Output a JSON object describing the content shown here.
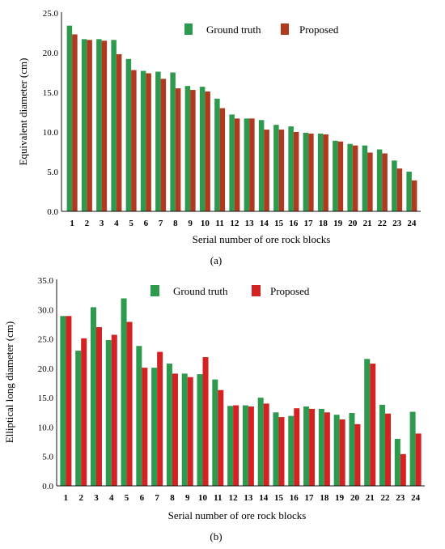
{
  "colors": {
    "ground_truth": "#2e9a4e",
    "proposed_a": "#b03a1f",
    "proposed_b": "#d42222",
    "axis": "#111111"
  },
  "chart_data": [
    {
      "type": "bar",
      "panel_label": "(a)",
      "xlabel": "Serial number of ore rock blocks",
      "ylabel": "Equivalent diameter (cm)",
      "ylim": [
        0,
        25
      ],
      "yticks": [
        "0.0",
        "5.0",
        "10.0",
        "15.0",
        "20.0",
        "25.0"
      ],
      "categories": [
        "1",
        "2",
        "3",
        "4",
        "5",
        "6",
        "7",
        "8",
        "9",
        "10",
        "11",
        "12",
        "13",
        "14",
        "15",
        "16",
        "17",
        "18",
        "19",
        "20",
        "21",
        "22",
        "23",
        "24"
      ],
      "legend_position": "top-right",
      "series": [
        {
          "name": "Ground truth",
          "values": [
            23.4,
            21.7,
            21.7,
            21.6,
            19.2,
            17.7,
            17.6,
            17.5,
            15.8,
            15.7,
            14.2,
            12.2,
            11.7,
            11.5,
            10.9,
            10.7,
            9.9,
            9.8,
            8.9,
            8.5,
            8.3,
            7.8,
            6.4,
            5.0
          ]
        },
        {
          "name": "Proposed",
          "values": [
            22.3,
            21.6,
            21.5,
            19.8,
            17.8,
            17.4,
            16.7,
            15.5,
            15.3,
            15.1,
            13.0,
            11.7,
            11.7,
            10.3,
            10.3,
            10.0,
            9.8,
            9.7,
            8.8,
            8.3,
            7.4,
            7.3,
            5.4,
            3.9
          ]
        }
      ]
    },
    {
      "type": "bar",
      "panel_label": "(b)",
      "xlabel": "Serial number of ore rock blocks",
      "ylabel": "Elliptical long diameter (cm)",
      "ylim": [
        0,
        35
      ],
      "yticks": [
        "0.0",
        "5.0",
        "10.0",
        "15.0",
        "20.0",
        "25.0",
        "30.0",
        "35.0"
      ],
      "categories": [
        "1",
        "2",
        "3",
        "4",
        "5",
        "6",
        "7",
        "8",
        "9",
        "10",
        "11",
        "12",
        "13",
        "14",
        "15",
        "16",
        "17",
        "18",
        "19",
        "20",
        "21",
        "22",
        "23",
        "24"
      ],
      "legend_position": "top-right",
      "series": [
        {
          "name": "Ground truth",
          "values": [
            28.9,
            23.0,
            30.4,
            24.8,
            31.9,
            23.8,
            20.1,
            20.8,
            19.1,
            19.0,
            18.1,
            13.6,
            13.7,
            15.0,
            12.5,
            11.9,
            13.5,
            13.1,
            12.1,
            12.4,
            21.6,
            13.8,
            8.0,
            12.6
          ]
        },
        {
          "name": "Proposed",
          "values": [
            28.9,
            25.1,
            27.0,
            25.7,
            27.9,
            20.1,
            22.8,
            19.1,
            18.5,
            21.9,
            16.3,
            13.7,
            13.5,
            14.0,
            11.7,
            13.2,
            13.1,
            12.5,
            11.3,
            10.5,
            20.8,
            12.3,
            5.4,
            8.9
          ]
        }
      ]
    }
  ]
}
